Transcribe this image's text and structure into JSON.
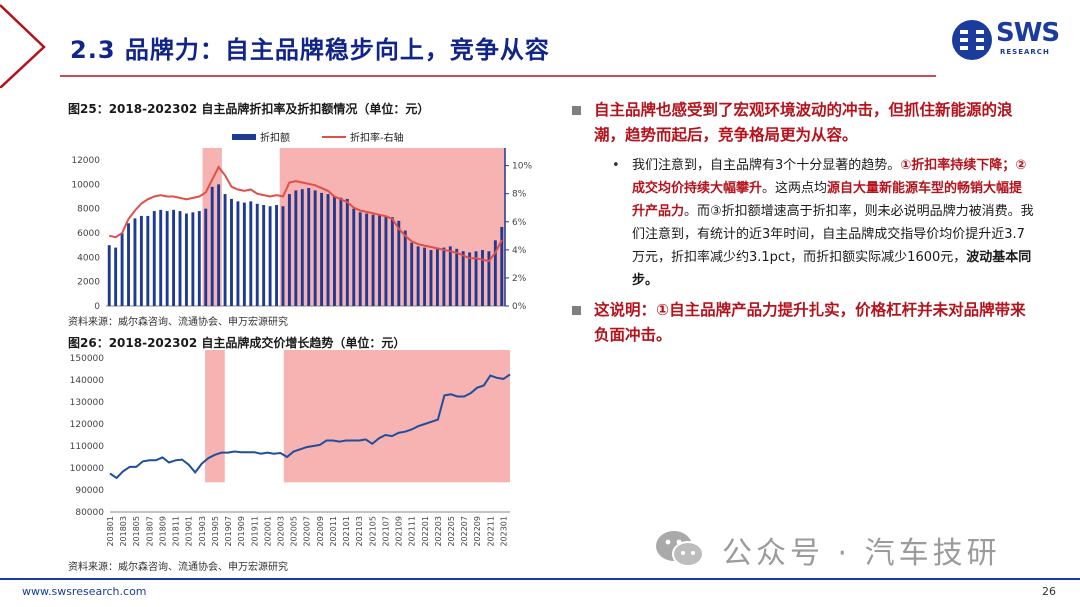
{
  "header": {
    "title": "2.3 品牌力：自主品牌稳步向上，竞争从容",
    "logo_text": "SWS",
    "logo_sub": "RESEARCH",
    "accent_color": "#b5121b",
    "brand_color": "#1b3c9c"
  },
  "chart1": {
    "title": "图25：2018-202302 自主品牌折扣率及折扣额情况（单位：元）",
    "source": "资料来源：威尔森咨询、流通协会、申万宏源研究",
    "legend_bar": "折扣额",
    "legend_line": "折扣率-右轴",
    "y_ticks": [
      "12000",
      "10000",
      "8000",
      "6000",
      "4000",
      "2000",
      "0"
    ],
    "y2_ticks": [
      "10%",
      "8%",
      "6%",
      "4%",
      "2%",
      "0%"
    ]
  },
  "chart2": {
    "title": "图26：2018-202302 自主品牌成交价增长趋势（单位：元）",
    "source": "资料来源：威尔森咨询、流通协会、申万宏源研究",
    "y_ticks": [
      "150000",
      "140000",
      "130000",
      "120000",
      "110000",
      "100000",
      "90000",
      "80000"
    ],
    "x_ticks": [
      "201801",
      "201803",
      "201805",
      "201807",
      "201809",
      "201811",
      "201901",
      "201903",
      "201905",
      "201907",
      "201909",
      "201911",
      "202001",
      "202003",
      "202005",
      "202007",
      "202009",
      "202011",
      "202101",
      "202103",
      "202105",
      "202107",
      "202109",
      "202111",
      "202201",
      "202203",
      "202205",
      "202207",
      "202209",
      "202211",
      "202301"
    ]
  },
  "bullets": {
    "b1": "自主品牌也感受到了宏观环境波动的冲击，但抓住新能源的浪潮，趋势而起后，竞争格局更为从容。",
    "s1_a": "我们注意到，自主品牌有3个十分显著的趋势。",
    "s1_b": "①折扣率持续下降；②成交均价持续大幅攀升",
    "s1_c": "。这两点均",
    "s1_d": "源自大量新能源车型的畅销大幅提升产品力",
    "s1_e": "。而③折扣额增速高于折扣率，则未必说明品牌力被消费。我们注意到，有统计的近3年时间，自主品牌成交指导价均价提升近3.7万元，折扣率减少约3.1pct，而折扣额实际减少1600元，",
    "s1_f": "波动基本同步。",
    "b2": "这说明：①自主品牌产品力提升扎实，价格杠杆并未对品牌带来负面冲击。",
    "bullet_symbol": "•"
  },
  "watermark": {
    "text": "公众号 · 汽车技研"
  },
  "footer": {
    "url": "www.swsresearch.com",
    "page": "26"
  },
  "chart_data": [
    {
      "type": "bar",
      "title": "图25：2018-202302 自主品牌折扣率及折扣额情况（单位：元）",
      "categories": [
        "201801",
        "201802",
        "201803",
        "201804",
        "201805",
        "201806",
        "201807",
        "201808",
        "201809",
        "201810",
        "201811",
        "201812",
        "201901",
        "201902",
        "201903",
        "201904",
        "201905",
        "201906",
        "201907",
        "201908",
        "201909",
        "201910",
        "201911",
        "201912",
        "202001",
        "202002",
        "202003",
        "202004",
        "202005",
        "202006",
        "202007",
        "202008",
        "202009",
        "202010",
        "202011",
        "202012",
        "202101",
        "202102",
        "202103",
        "202104",
        "202105",
        "202106",
        "202107",
        "202108",
        "202109",
        "202110",
        "202111",
        "202112",
        "202201",
        "202202",
        "202203",
        "202204",
        "202205",
        "202206",
        "202207",
        "202208",
        "202209",
        "202210",
        "202211",
        "202212",
        "202301",
        "202302"
      ],
      "series": [
        {
          "name": "折扣额",
          "axis": "left",
          "values": [
            5000,
            4800,
            6000,
            6800,
            7200,
            7400,
            7400,
            7800,
            7900,
            7800,
            7900,
            7800,
            7600,
            7700,
            7800,
            8000,
            9800,
            10000,
            9200,
            8800,
            8600,
            8500,
            8600,
            8400,
            8300,
            8200,
            8300,
            8200,
            9200,
            9500,
            9600,
            9700,
            9500,
            9300,
            9200,
            9000,
            8900,
            8800,
            8000,
            7700,
            7600,
            7500,
            7500,
            7400,
            7300,
            7000,
            6200,
            5200,
            4900,
            4800,
            4600,
            4700,
            4800,
            4900,
            4700,
            4500,
            4400,
            4500,
            4600,
            4500,
            5400,
            6500
          ]
        },
        {
          "name": "折扣率-右轴",
          "axis": "right",
          "values": [
            5.0,
            4.9,
            5.2,
            6.2,
            6.8,
            7.3,
            7.6,
            7.8,
            7.9,
            7.8,
            7.8,
            7.7,
            7.6,
            7.7,
            7.8,
            8.1,
            9.0,
            9.9,
            9.3,
            8.5,
            8.3,
            8.2,
            8.3,
            8.0,
            7.9,
            7.8,
            7.9,
            7.8,
            8.8,
            8.9,
            8.8,
            8.7,
            8.6,
            8.4,
            8.2,
            7.8,
            7.6,
            7.4,
            7.0,
            6.8,
            6.7,
            6.6,
            6.5,
            6.4,
            6.2,
            5.5,
            5.0,
            4.6,
            4.4,
            4.3,
            4.2,
            4.1,
            4.0,
            3.9,
            3.8,
            3.6,
            3.4,
            3.4,
            3.3,
            3.2,
            3.8,
            4.7
          ]
        }
      ],
      "ylim": [
        0,
        12000
      ],
      "y2lim": [
        0,
        10
      ],
      "shaded_ranges": [
        [
          "201904",
          "201906"
        ],
        [
          "202004",
          "202302"
        ]
      ],
      "legend": "top"
    },
    {
      "type": "line",
      "title": "图26：2018-202302 自主品牌成交价增长趋势（单位：元）",
      "x": [
        "201801",
        "201802",
        "201803",
        "201804",
        "201805",
        "201806",
        "201807",
        "201808",
        "201809",
        "201810",
        "201811",
        "201812",
        "201901",
        "201902",
        "201903",
        "201904",
        "201905",
        "201906",
        "201907",
        "201908",
        "201909",
        "201910",
        "201911",
        "201912",
        "202001",
        "202002",
        "202003",
        "202004",
        "202005",
        "202006",
        "202007",
        "202008",
        "202009",
        "202010",
        "202011",
        "202012",
        "202101",
        "202102",
        "202103",
        "202104",
        "202105",
        "202106",
        "202107",
        "202108",
        "202109",
        "202110",
        "202111",
        "202112",
        "202201",
        "202202",
        "202203",
        "202204",
        "202205",
        "202206",
        "202207",
        "202208",
        "202209",
        "202210",
        "202211",
        "202212",
        "202301",
        "202302"
      ],
      "series": [
        {
          "values": [
            97500,
            95500,
            98500,
            100500,
            100500,
            103000,
            103500,
            103500,
            104800,
            102500,
            103500,
            103800,
            101500,
            98000,
            102000,
            104500,
            106000,
            107000,
            107000,
            107500,
            107200,
            107200,
            107200,
            106500,
            107000,
            106500,
            106800,
            105000,
            107500,
            108500,
            109500,
            110000,
            110500,
            112500,
            112500,
            112000,
            112500,
            112500,
            112500,
            113000,
            111000,
            113500,
            115000,
            114500,
            116000,
            116500,
            117500,
            119000,
            120000,
            121000,
            122000,
            133000,
            133500,
            132500,
            132500,
            134000,
            136500,
            137500,
            142000,
            141000,
            140500,
            142500
          ]
        }
      ],
      "ylim": [
        80000,
        150000
      ],
      "shaded_ranges": [
        [
          "201904",
          "201906"
        ],
        [
          "202004",
          "202302"
        ]
      ],
      "color": "#1f4e9c"
    }
  ]
}
